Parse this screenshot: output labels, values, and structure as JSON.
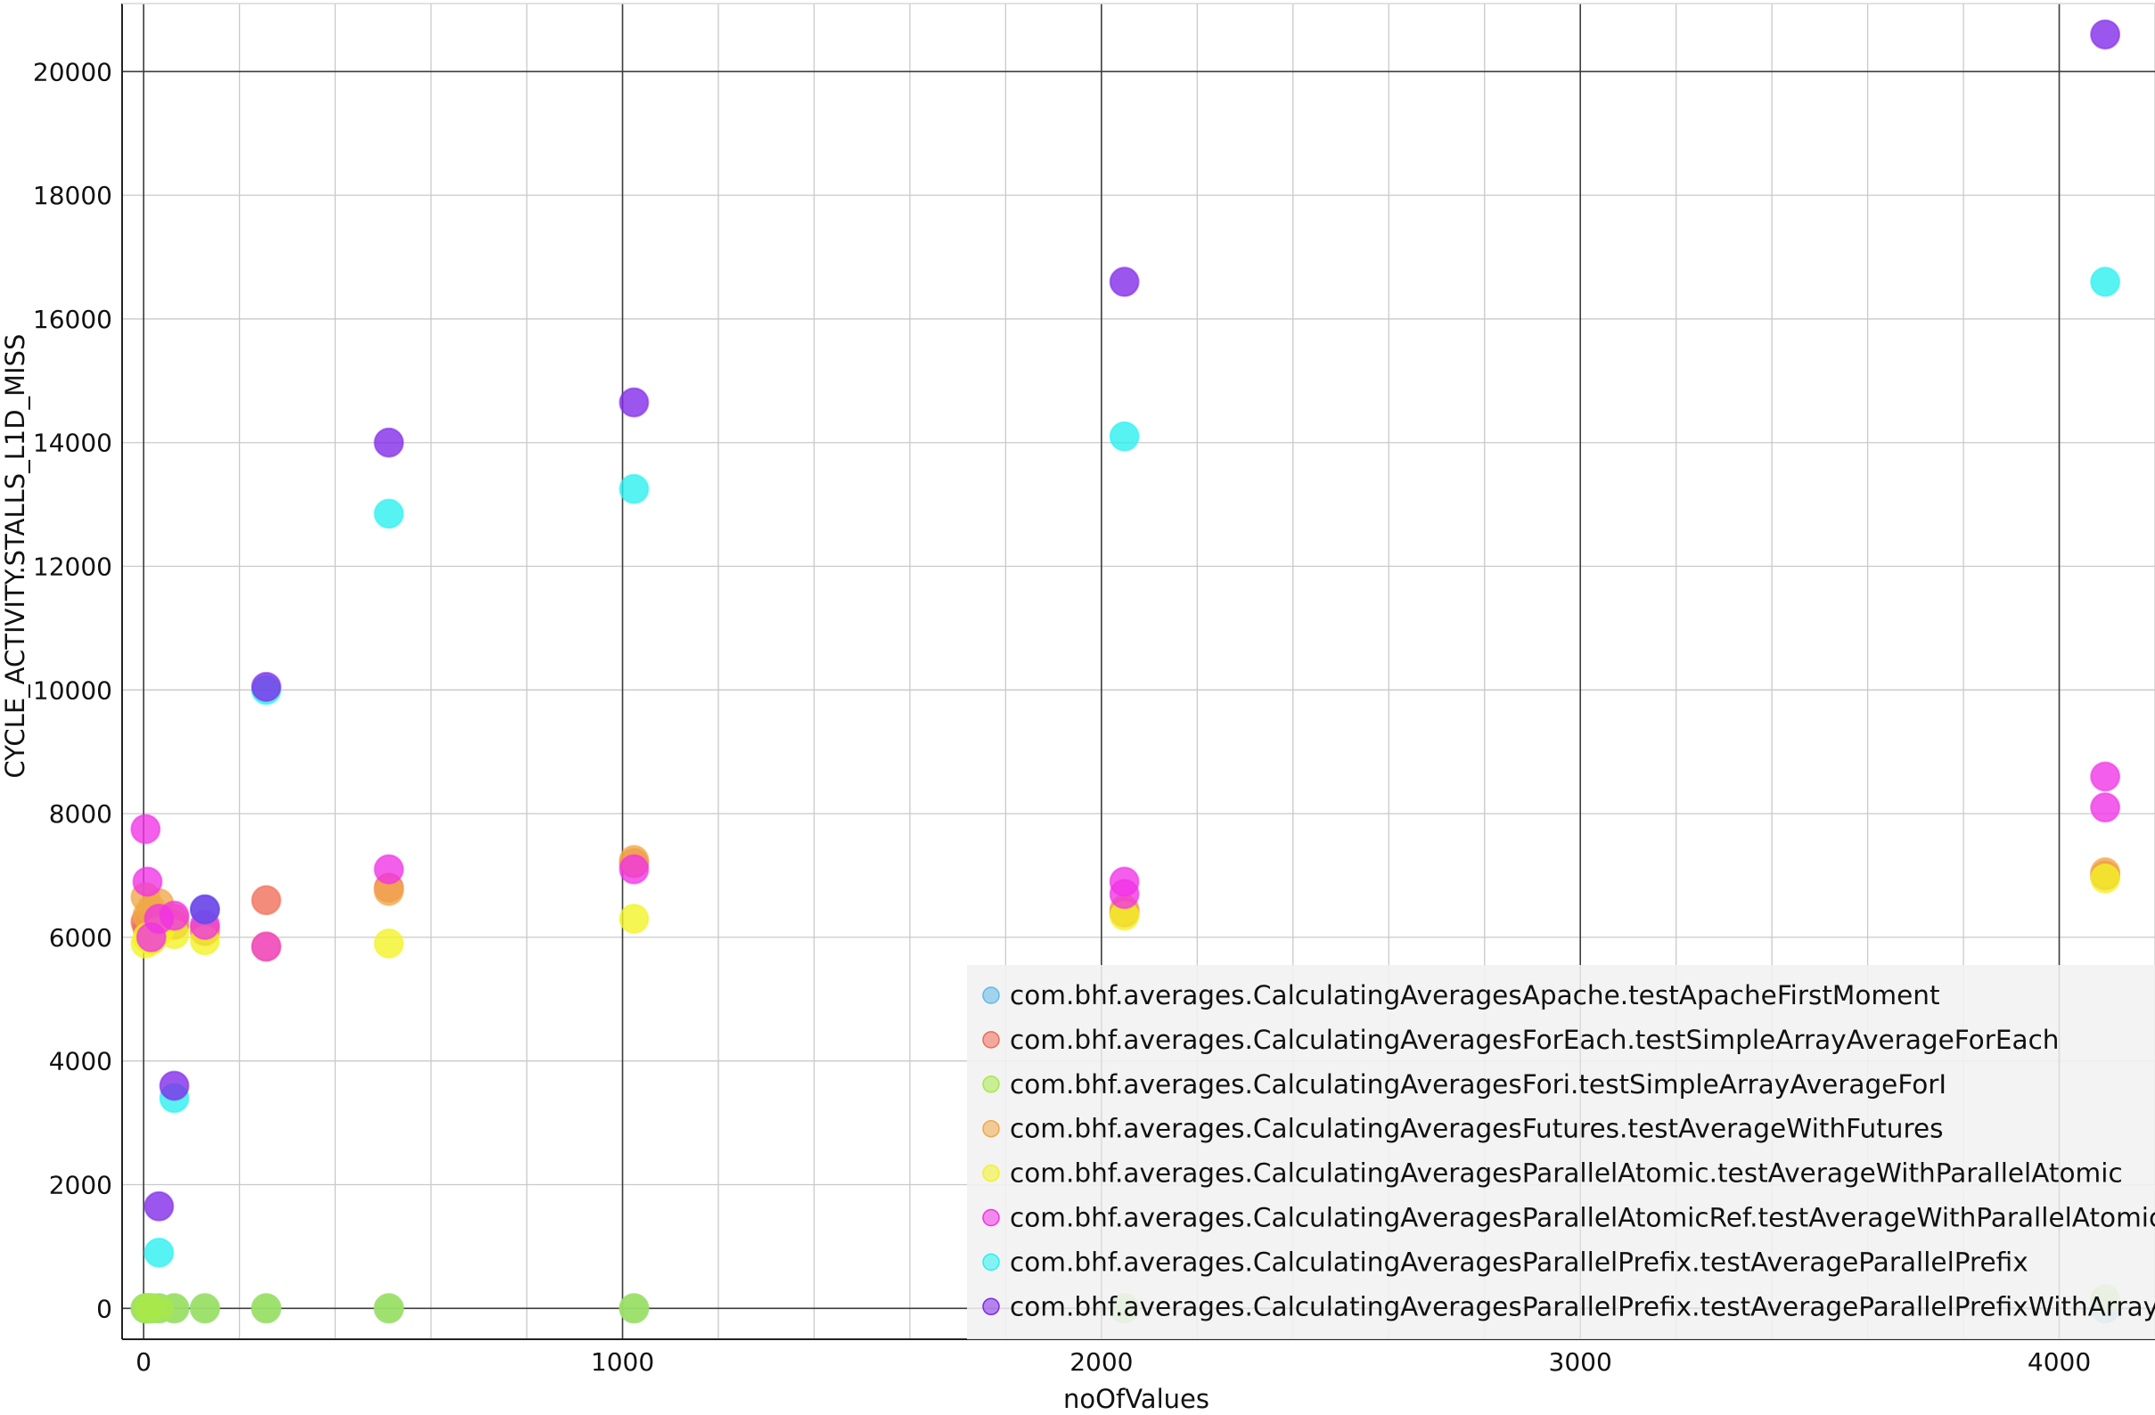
{
  "chart_data": {
    "type": "scatter",
    "title": "",
    "xlabel": "noOfValues",
    "ylabel": "CYCLE_ACTIVITY.STALLS_L1D_MISS",
    "xlim": [
      -45,
      4200
    ],
    "ylim": [
      -500,
      21100
    ],
    "x_ticks": [
      0,
      1000,
      2000,
      3000,
      4000
    ],
    "y_ticks": [
      0,
      2000,
      4000,
      6000,
      8000,
      10000,
      12000,
      14000,
      16000,
      18000,
      20000
    ],
    "x_tick_labels": [
      "0",
      "1000",
      "2000",
      "3000",
      "4000"
    ],
    "y_tick_labels": [
      "0",
      "2000",
      "4000",
      "6000",
      "8000",
      "10000",
      "12000",
      "14000",
      "16000",
      "18000",
      "20000"
    ],
    "x_minor_step": 200,
    "y_minor_step": 2000,
    "grid": true,
    "legend_position": "bottom-right",
    "series": [
      {
        "name": "com.bhf.averages.CalculatingAveragesApache.testApacheFirstMoment",
        "color": "#5fb8e8",
        "points": [
          [
            4,
            0
          ],
          [
            8,
            0
          ],
          [
            16,
            0
          ],
          [
            32,
            0
          ],
          [
            64,
            0
          ],
          [
            128,
            0
          ],
          [
            256,
            0
          ],
          [
            512,
            0
          ],
          [
            1024,
            0
          ],
          [
            2048,
            0
          ],
          [
            4096,
            0
          ]
        ]
      },
      {
        "name": "com.bhf.averages.CalculatingAveragesForEach.testSimpleArrayAverageForEach",
        "color": "#ef6b55",
        "points": [
          [
            4,
            6250
          ],
          [
            8,
            6150
          ],
          [
            16,
            6300
          ],
          [
            32,
            6250
          ],
          [
            64,
            6200
          ],
          [
            128,
            6100
          ],
          [
            256,
            6600
          ],
          [
            512,
            6800
          ],
          [
            1024,
            7200
          ],
          [
            2048,
            6400
          ],
          [
            4096,
            7000
          ]
        ]
      },
      {
        "name": "com.bhf.averages.CalculatingAveragesFori.testSimpleArrayAverageForI",
        "color": "#a8e84a",
        "points": [
          [
            4,
            0
          ],
          [
            8,
            0
          ],
          [
            16,
            0
          ],
          [
            32,
            0
          ],
          [
            64,
            0
          ],
          [
            128,
            0
          ],
          [
            256,
            0
          ],
          [
            512,
            0
          ],
          [
            1024,
            0
          ],
          [
            2048,
            0
          ],
          [
            4096,
            150
          ]
        ]
      },
      {
        "name": "com.bhf.averages.CalculatingAveragesFutures.testAverageWithFutures",
        "color": "#f0a848",
        "points": [
          [
            4,
            6650
          ],
          [
            8,
            6350
          ],
          [
            16,
            6450
          ],
          [
            32,
            6550
          ],
          [
            64,
            6300
          ],
          [
            128,
            6150
          ],
          [
            256,
            5850
          ],
          [
            512,
            6750
          ],
          [
            1024,
            7250
          ],
          [
            2048,
            6450
          ],
          [
            4096,
            7050
          ]
        ]
      },
      {
        "name": "com.bhf.averages.CalculatingAveragesParallelAtomic.testAverageWithParallelAtomic",
        "color": "#f2f224",
        "points": [
          [
            4,
            5900
          ],
          [
            8,
            6000
          ],
          [
            16,
            5950
          ],
          [
            32,
            6100
          ],
          [
            64,
            6050
          ],
          [
            128,
            5950
          ],
          [
            256,
            5850
          ],
          [
            512,
            5900
          ],
          [
            1024,
            6300
          ],
          [
            2048,
            6350
          ],
          [
            4096,
            6950
          ]
        ]
      },
      {
        "name": "com.bhf.averages.CalculatingAveragesParallelAtomicRef.testAverageWithParallelAtomicRef",
        "color": "#f032e6",
        "points": [
          [
            4,
            7750
          ],
          [
            8,
            6900
          ],
          [
            16,
            6000
          ],
          [
            32,
            6300
          ],
          [
            64,
            6350
          ],
          [
            128,
            6200
          ],
          [
            256,
            5850
          ],
          [
            512,
            7100
          ],
          [
            1024,
            7100
          ],
          [
            2048,
            6700
          ],
          [
            2048,
            6900
          ],
          [
            4096,
            8600
          ],
          [
            4096,
            8100
          ]
        ]
      },
      {
        "name": "com.bhf.averages.CalculatingAveragesParallelPrefix.testAverageParallelPrefix",
        "color": "#28f0f0",
        "points": [
          [
            32,
            900
          ],
          [
            64,
            3400
          ],
          [
            128,
            6450
          ],
          [
            256,
            10000
          ],
          [
            512,
            12850
          ],
          [
            1024,
            13250
          ],
          [
            2048,
            14100
          ],
          [
            4096,
            16600
          ]
        ]
      },
      {
        "name": "com.bhf.averages.CalculatingAveragesParallelPrefix.testAverageParallelPrefixWithArrayCopy",
        "color": "#7f28e8",
        "points": [
          [
            32,
            1650
          ],
          [
            64,
            3600
          ],
          [
            128,
            6450
          ],
          [
            256,
            10050
          ],
          [
            512,
            14000
          ],
          [
            1024,
            14650
          ],
          [
            2048,
            16600
          ],
          [
            4096,
            20600
          ]
        ]
      }
    ]
  }
}
